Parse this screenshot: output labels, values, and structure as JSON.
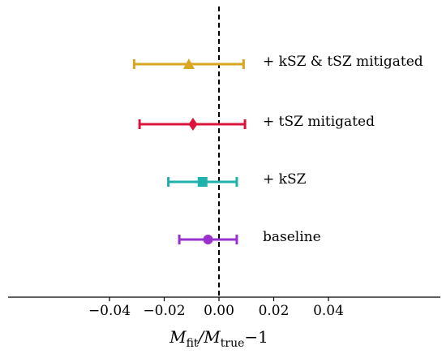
{
  "chart_data": {
    "type": "forest",
    "title": "",
    "xlabel": {
      "base": "M",
      "sub_numerator": "fit",
      "sub_denominator": "true",
      "suffix": "−1",
      "text": "M_fit/M_true − 1"
    },
    "xlim": [
      -0.075,
      0.075
    ],
    "xticks": [
      {
        "value": -0.04,
        "label": "−0.04"
      },
      {
        "value": -0.02,
        "label": "−0.02"
      },
      {
        "value": 0.0,
        "label": "0.00"
      },
      {
        "value": 0.02,
        "label": "0.02"
      },
      {
        "value": 0.04,
        "label": "0.04"
      }
    ],
    "reference_line": {
      "x": 0.0,
      "style": "dashed",
      "color": "#000000"
    },
    "series": [
      {
        "name": "+ kSZ & tSZ mitigated",
        "value": -0.011,
        "lower": -0.031,
        "upper": 0.009,
        "marker": "triangle",
        "color": "#daa520"
      },
      {
        "name": "+ tSZ mitigated",
        "value": -0.0095,
        "lower": -0.029,
        "upper": 0.0095,
        "marker": "diamond",
        "color": "#dc143c"
      },
      {
        "name": "+ kSZ",
        "value": -0.006,
        "lower": -0.0185,
        "upper": 0.0065,
        "marker": "square",
        "color": "#20b2aa"
      },
      {
        "name": "baseline",
        "value": -0.004,
        "lower": -0.0145,
        "upper": 0.0065,
        "marker": "circle",
        "color": "#9932cc"
      }
    ]
  }
}
